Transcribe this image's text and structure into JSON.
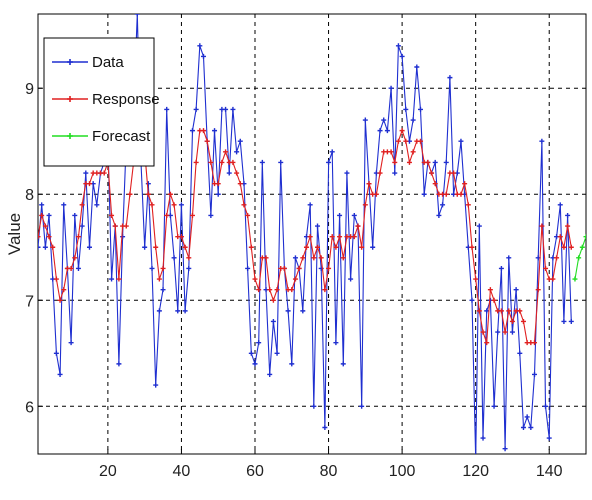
{
  "chart_data": {
    "type": "line",
    "xlabel": "",
    "ylabel": "Value",
    "xlim": [
      1,
      150
    ],
    "ylim": [
      5.55,
      9.7
    ],
    "x_ticks": [
      20,
      40,
      60,
      80,
      100,
      120,
      140
    ],
    "y_ticks": [
      6,
      7,
      8,
      9
    ],
    "grid": true,
    "legend": {
      "position": "top-left",
      "entries": [
        "Data",
        "Response",
        "Forecast"
      ]
    },
    "series": [
      {
        "name": "Data",
        "color": "#1f2fd0",
        "marker": "plus",
        "x": [
          1,
          2,
          3,
          4,
          5,
          6,
          7,
          8,
          9,
          10,
          11,
          12,
          13,
          14,
          15,
          16,
          17,
          18,
          19,
          20,
          21,
          22,
          23,
          24,
          25,
          26,
          27,
          28,
          29,
          30,
          31,
          32,
          33,
          34,
          35,
          36,
          37,
          38,
          39,
          40,
          41,
          42,
          43,
          44,
          45,
          46,
          47,
          48,
          49,
          50,
          51,
          52,
          53,
          54,
          55,
          56,
          57,
          58,
          59,
          60,
          61,
          62,
          63,
          64,
          65,
          66,
          67,
          68,
          69,
          70,
          71,
          72,
          73,
          74,
          75,
          76,
          77,
          78,
          79,
          80,
          81,
          82,
          83,
          84,
          85,
          86,
          87,
          88,
          89,
          90,
          91,
          92,
          93,
          94,
          95,
          96,
          97,
          98,
          99,
          100,
          101,
          102,
          103,
          104,
          105,
          106,
          107,
          108,
          109,
          110,
          111,
          112,
          113,
          114,
          115,
          116,
          117,
          118,
          119,
          120,
          121,
          122,
          123,
          124,
          125,
          126,
          127,
          128,
          129,
          130,
          131,
          132,
          133,
          134,
          135,
          136,
          137,
          138,
          139,
          140,
          141,
          142,
          143,
          144,
          145,
          146
        ],
        "y": [
          7.5,
          7.9,
          7.5,
          7.8,
          7.2,
          6.5,
          6.3,
          7.9,
          7.3,
          6.6,
          7.8,
          7.3,
          7.7,
          8.2,
          7.5,
          8.1,
          7.9,
          8.2,
          8.3,
          8.5,
          7.2,
          7.7,
          6.4,
          7.6,
          8.5,
          8.9,
          8.8,
          9.7,
          8.3,
          7.5,
          8.1,
          7.3,
          6.2,
          6.9,
          7.1,
          8.8,
          7.8,
          7.4,
          6.9,
          7.9,
          6.9,
          7.3,
          8.6,
          8.8,
          9.4,
          9.3,
          8.5,
          7.8,
          8.6,
          8.0,
          8.8,
          8.8,
          8.2,
          8.8,
          8.4,
          8.5,
          8.1,
          7.3,
          6.5,
          6.4,
          6.6,
          8.3,
          7.1,
          6.3,
          6.8,
          6.5,
          8.3,
          7.3,
          6.9,
          6.4,
          7.4,
          7.3,
          6.9,
          7.6,
          7.9,
          6.0,
          7.7,
          7.3,
          5.8,
          8.3,
          8.4,
          6.6,
          7.8,
          6.4,
          8.2,
          7.2,
          7.8,
          7.7,
          6.0,
          8.7,
          8.1,
          7.5,
          8.2,
          8.6,
          8.7,
          8.6,
          9.0,
          8.2,
          9.4,
          9.3,
          8.8,
          8.5,
          8.7,
          9.2,
          8.8,
          8.0,
          8.3,
          8.2,
          8.3,
          7.8,
          7.9,
          8.3,
          9.1,
          8.0,
          8.2,
          8.5,
          8.0,
          7.5,
          7.0,
          5.5,
          7.7,
          5.7,
          6.9,
          7.0,
          6.0,
          6.7,
          7.3,
          5.6,
          7.4,
          6.7,
          7.1,
          6.5,
          5.8,
          5.9,
          5.8,
          6.3,
          7.4,
          8.5,
          6.0,
          5.7,
          7.4,
          7.6,
          7.9,
          6.8,
          7.8,
          6.8
        ],
        "points": [
          {
            "x": 1,
            "y": 7.5
          }
        ]
      },
      {
        "name": "Response",
        "color": "#e02020",
        "marker": "plus",
        "x": [
          1,
          2,
          3,
          4,
          5,
          6,
          7,
          8,
          9,
          10,
          11,
          12,
          13,
          14,
          15,
          16,
          17,
          18,
          19,
          20,
          21,
          22,
          23,
          24,
          25,
          26,
          27,
          28,
          29,
          30,
          31,
          32,
          33,
          34,
          35,
          36,
          37,
          38,
          39,
          40,
          41,
          42,
          43,
          44,
          45,
          46,
          47,
          48,
          49,
          50,
          51,
          52,
          53,
          54,
          55,
          56,
          57,
          58,
          59,
          60,
          61,
          62,
          63,
          64,
          65,
          66,
          67,
          68,
          69,
          70,
          71,
          72,
          73,
          74,
          75,
          76,
          77,
          78,
          79,
          80,
          81,
          82,
          83,
          84,
          85,
          86,
          87,
          88,
          89,
          90,
          91,
          92,
          93,
          94,
          95,
          96,
          97,
          98,
          99,
          100,
          101,
          102,
          103,
          104,
          105,
          106,
          107,
          108,
          109,
          110,
          111,
          112,
          113,
          114,
          115,
          116,
          117,
          118,
          119,
          120,
          121,
          122,
          123,
          124,
          125,
          126,
          127,
          128,
          129,
          130,
          131,
          132,
          133,
          134,
          135,
          136,
          137,
          138,
          139,
          140,
          141,
          142,
          143,
          144,
          145,
          146
        ],
        "y": [
          7.6,
          7.8,
          7.7,
          7.6,
          7.5,
          7.2,
          7.0,
          7.1,
          7.3,
          7.3,
          7.4,
          7.6,
          7.9,
          8.1,
          8.1,
          8.2,
          8.2,
          8.2,
          8.2,
          8.3,
          7.8,
          7.7,
          7.2,
          7.7,
          7.7,
          8.0,
          8.3,
          8.4,
          8.5,
          8.4,
          8.0,
          7.9,
          7.5,
          7.2,
          7.3,
          7.8,
          8.0,
          7.9,
          7.6,
          7.6,
          7.5,
          7.4,
          7.8,
          8.3,
          8.6,
          8.6,
          8.5,
          8.3,
          8.1,
          8.1,
          8.3,
          8.4,
          8.3,
          8.3,
          8.2,
          8.1,
          7.9,
          7.8,
          7.5,
          7.2,
          7.1,
          7.4,
          7.4,
          7.1,
          7.0,
          7.1,
          7.3,
          7.3,
          7.1,
          7.1,
          7.2,
          7.3,
          7.4,
          7.5,
          7.6,
          7.4,
          7.5,
          7.4,
          7.1,
          7.3,
          7.6,
          7.5,
          7.6,
          7.4,
          7.6,
          7.6,
          7.6,
          7.7,
          7.5,
          7.9,
          8.1,
          8.0,
          8.0,
          8.2,
          8.4,
          8.4,
          8.4,
          8.3,
          8.5,
          8.6,
          8.5,
          8.3,
          8.4,
          8.5,
          8.5,
          8.3,
          8.3,
          8.2,
          8.1,
          8.0,
          8.0,
          8.0,
          8.2,
          8.2,
          8.0,
          8.0,
          8.1,
          7.9,
          7.5,
          7.2,
          6.9,
          6.7,
          6.6,
          7.1,
          7.0,
          6.9,
          6.9,
          6.7,
          6.9,
          6.8,
          6.9,
          6.9,
          6.8,
          6.6,
          6.6,
          6.6,
          7.1,
          7.7,
          7.3,
          7.2,
          7.2,
          7.4,
          7.6,
          7.5,
          7.7,
          7.5
        ]
      },
      {
        "name": "Forecast",
        "color": "#22dd22",
        "marker": "plus",
        "x": [
          147,
          148,
          149,
          150,
          151
        ],
        "y": [
          7.2,
          7.4,
          7.5,
          7.6,
          7.7
        ]
      }
    ]
  }
}
